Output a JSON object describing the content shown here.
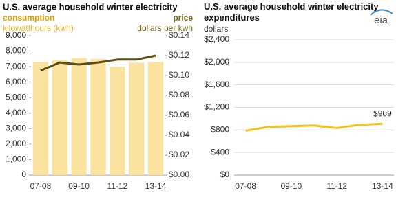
{
  "chart_data": [
    {
      "type": "bar",
      "title": "U.S. average household winter electricity",
      "y_label_title": "consumption",
      "y_label": "kilowatthours (kwh)",
      "y2_label_title": "price",
      "y2_label": "dollars per kwh",
      "categories": [
        "07-08",
        null,
        "09-10",
        null,
        "11-12",
        null,
        "13-14"
      ],
      "ylim": [
        0,
        9000
      ],
      "yticks": [
        {
          "value": 0,
          "label": "0"
        },
        {
          "value": 1000,
          "label": "1,000"
        },
        {
          "value": 2000,
          "label": "2,000"
        },
        {
          "value": 3000,
          "label": "3,000"
        },
        {
          "value": 4000,
          "label": "4,000"
        },
        {
          "value": 5000,
          "label": "5,000"
        },
        {
          "value": 6000,
          "label": "6,000"
        },
        {
          "value": 7000,
          "label": "7,000"
        },
        {
          "value": 8000,
          "label": "8,000"
        },
        {
          "value": 9000,
          "label": "9,000"
        }
      ],
      "y2lim": [
        0,
        0.14
      ],
      "y2ticks": [
        {
          "value": 0,
          "label": "$0.00"
        },
        {
          "value": 0.02,
          "label": "$0.02"
        },
        {
          "value": 0.04,
          "label": "$0.04"
        },
        {
          "value": 0.06,
          "label": "$0.06"
        },
        {
          "value": 0.08,
          "label": "$0.08"
        },
        {
          "value": 0.1,
          "label": "$0.10"
        },
        {
          "value": 0.12,
          "label": "$0.12"
        },
        {
          "value": 0.14,
          "label": "$0.14"
        }
      ],
      "grid": false,
      "series": [
        {
          "type": "bar",
          "color": "#fbe29f",
          "values": [
            7300,
            7400,
            7550,
            7500,
            7000,
            7250,
            7300
          ]
        },
        {
          "type": "line",
          "axis": "y2",
          "color": "#5e4e12",
          "values": [
            0.105,
            0.113,
            0.111,
            0.113,
            0.116,
            0.116,
            0.12
          ]
        }
      ]
    },
    {
      "type": "line",
      "title": "U.S. average household winter electricity expenditures",
      "y_label": "dollars",
      "logo": "eia",
      "categories": [
        "07-08",
        null,
        "09-10",
        null,
        "11-12",
        null,
        "13-14"
      ],
      "ylim": [
        0,
        2400
      ],
      "yticks": [
        {
          "value": 0,
          "label": "$0"
        },
        {
          "value": 400,
          "label": "$400"
        },
        {
          "value": 800,
          "label": "$800"
        },
        {
          "value": 1200,
          "label": "$1,200"
        },
        {
          "value": 1600,
          "label": "$1,600"
        },
        {
          "value": 2000,
          "label": "$2,000"
        },
        {
          "value": 2400,
          "label": "$2,400"
        }
      ],
      "grid": true,
      "series": [
        {
          "type": "line",
          "color": "#f5c21b",
          "values": [
            787,
            855,
            868,
            880,
            835,
            893,
            909
          ],
          "value_labels": [
            null,
            null,
            null,
            null,
            null,
            null,
            "$909"
          ]
        }
      ]
    }
  ]
}
